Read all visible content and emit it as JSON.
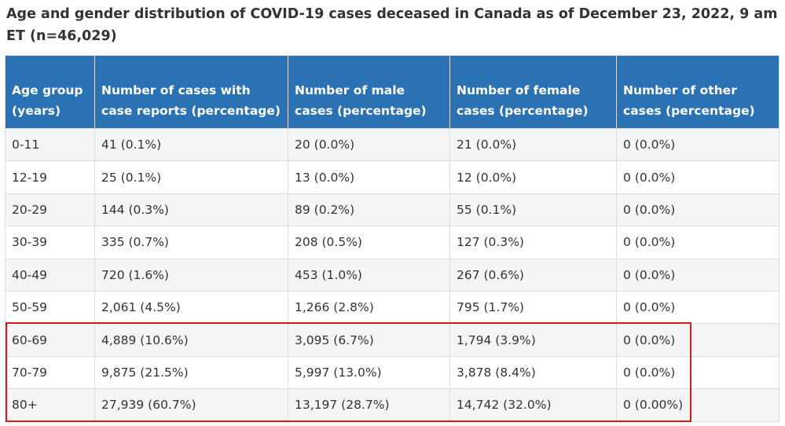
{
  "caption": "Age and gender distribution of COVID-19 cases deceased in Canada as of December 23, 2022, 9 am ET (n=46,029)",
  "headers": [
    "Age group (years)",
    "Number of cases with case reports (percentage)",
    "Number of male cases (percentage)",
    "Number of female cases (percentage)",
    "Number of other cases (percentage)"
  ],
  "rows": [
    [
      "0-11",
      "41 (0.1%)",
      "20 (0.0%)",
      "21 (0.0%)",
      "0 (0.0%)"
    ],
    [
      "12-19",
      "25 (0.1%)",
      "13 (0.0%)",
      "12 (0.0%)",
      "0 (0.0%)"
    ],
    [
      "20-29",
      "144 (0.3%)",
      "89 (0.2%)",
      "55 (0.1%)",
      "0 (0.0%)"
    ],
    [
      "30-39",
      "335 (0.7%)",
      "208 (0.5%)",
      "127 (0.3%)",
      "0 (0.0%)"
    ],
    [
      "40-49",
      "720 (1.6%)",
      "453 (1.0%)",
      "267 (0.6%)",
      "0 (0.0%)"
    ],
    [
      "50-59",
      "2,061 (4.5%)",
      "1,266 (2.8%)",
      "795 (1.7%)",
      "0 (0.0%)"
    ],
    [
      "60-69",
      "4,889 (10.6%)",
      "3,095 (6.7%)",
      "1,794 (3.9%)",
      "0 (0.0%)"
    ],
    [
      "70-79",
      "9,875 (21.5%)",
      "5,997 (13.0%)",
      "3,878 (8.4%)",
      "0 (0.0%)"
    ],
    [
      "80+",
      "27,939 (60.7%)",
      "13,197 (28.7%)",
      "14,742 (32.0%)",
      "0 (0.00%)"
    ]
  ],
  "colors": {
    "header_bg": "#2b72b5",
    "header_text": "#ffffff",
    "row_stripe": "#f5f5f5",
    "highlight_border": "#d71920",
    "text": "#333333"
  }
}
